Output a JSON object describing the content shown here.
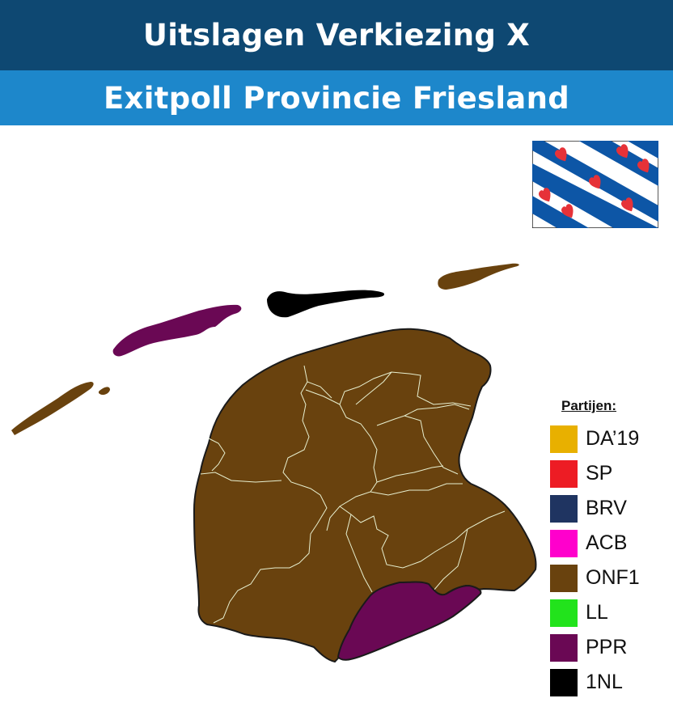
{
  "header": {
    "title": "Uitslagen Verkiezing X",
    "subtitle": "Exitpoll Provincie Friesland",
    "title_bg": "#0e4872",
    "subtitle_bg": "#1d87cb"
  },
  "flag": {
    "icon": "frisian-flag-icon",
    "colors": {
      "stripe": "#0d56a6",
      "field": "#ffffff",
      "pompebled": "#e63238"
    }
  },
  "legend": {
    "title": "Partijen:",
    "items": [
      {
        "label": "DA’19",
        "color": "#e8b000"
      },
      {
        "label": "SP",
        "color": "#ed1c24"
      },
      {
        "label": "BRV",
        "color": "#1f3461"
      },
      {
        "label": "ACB",
        "color": "#ff00cc"
      },
      {
        "label": "ONF1",
        "color": "#69420e"
      },
      {
        "label": "LL",
        "color": "#22e31c"
      },
      {
        "label": "PPR",
        "color": "#6a0854"
      },
      {
        "label": "1NL",
        "color": "#000000"
      }
    ]
  },
  "map": {
    "regions": [
      {
        "name": "Vlieland",
        "party": "ONF1"
      },
      {
        "name": "Terschelling",
        "party": "PPR"
      },
      {
        "name": "Ameland",
        "party": "1NL"
      },
      {
        "name": "Schiermonnikoog",
        "party": "ONF1"
      },
      {
        "name": "Vasteland",
        "party": "ONF1"
      },
      {
        "name": "Zuidoost",
        "party": "PPR"
      }
    ]
  }
}
